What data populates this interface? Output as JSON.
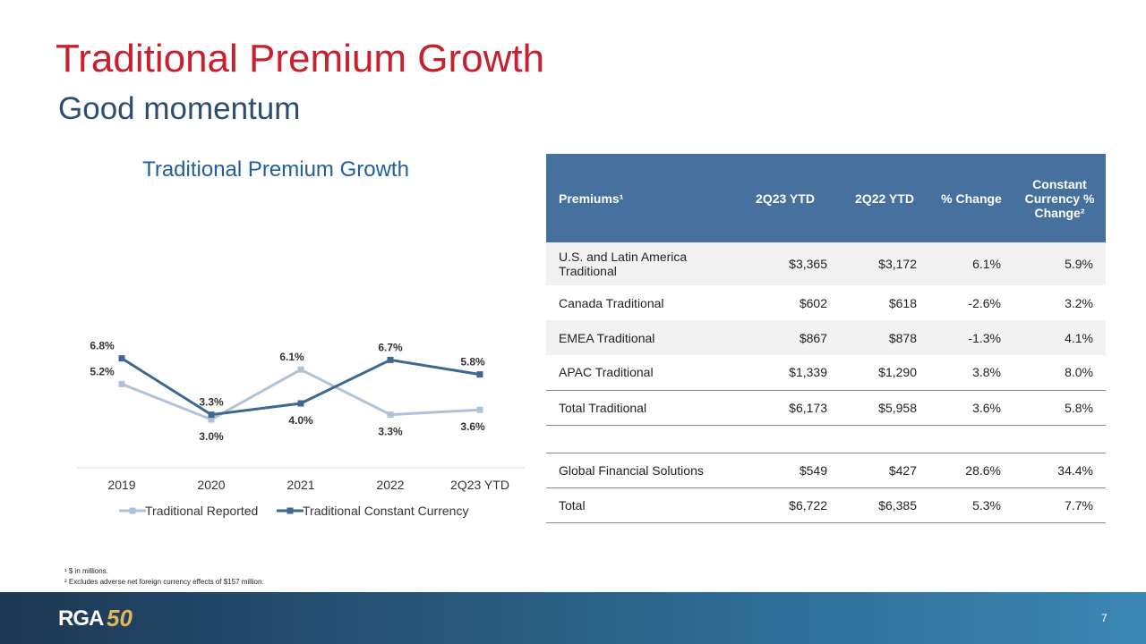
{
  "header": {
    "title": "Traditional Premium Growth",
    "subtitle": "Good momentum"
  },
  "chart_data": {
    "type": "line",
    "title": "Traditional Premium Growth",
    "categories": [
      "2019",
      "2020",
      "2021",
      "2022",
      "2Q23 YTD"
    ],
    "series": [
      {
        "name": "Traditional Reported",
        "color": "#afc2d6",
        "values": [
          5.2,
          3.0,
          6.1,
          3.3,
          3.6
        ],
        "labels": [
          "5.2%",
          "3.0%",
          "6.1%",
          "3.3%",
          "3.6%"
        ]
      },
      {
        "name": "Traditional Constant Currency",
        "color": "#3e6791",
        "values": [
          6.8,
          3.3,
          4.0,
          6.7,
          5.8
        ],
        "labels": [
          "6.8%",
          "3.3%",
          "4.0%",
          "6.7%",
          "5.8%"
        ]
      }
    ],
    "ylim": [
      0,
      10
    ],
    "grid": false,
    "legend_position": "bottom"
  },
  "table": {
    "headers": [
      "Premiums¹",
      "2Q23 YTD",
      "2Q22 YTD",
      "% Change",
      "Constant Currency % Change²"
    ],
    "rows": [
      [
        "U.S. and Latin America Traditional",
        "$3,365",
        "$3,172",
        "6.1%",
        "5.9%"
      ],
      [
        "Canada Traditional",
        "$602",
        "$618",
        "-2.6%",
        "3.2%"
      ],
      [
        "EMEA Traditional",
        "$867",
        "$878",
        "-1.3%",
        "4.1%"
      ],
      [
        "APAC Traditional",
        "$1,339",
        "$1,290",
        "3.8%",
        "8.0%"
      ],
      [
        "Total Traditional",
        "$6,173",
        "$5,958",
        "3.6%",
        "5.8%"
      ],
      [
        "Global Financial Solutions",
        "$549",
        "$427",
        "28.6%",
        "34.4%"
      ],
      [
        "Total",
        "$6,722",
        "$6,385",
        "5.3%",
        "7.7%"
      ]
    ]
  },
  "footnotes": [
    "¹ $ in millions.",
    "² Excludes adverse net foreign currency effects of $157 million."
  ],
  "footer": {
    "logo_text": "RGA",
    "logo_number": "50",
    "page_number": "7"
  }
}
